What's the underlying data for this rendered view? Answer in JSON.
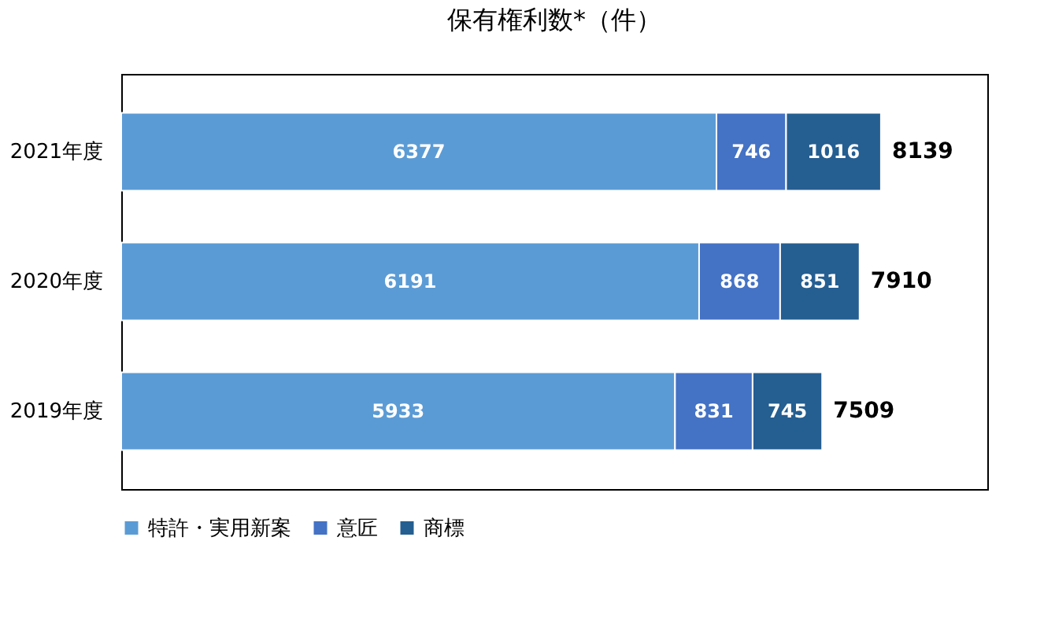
{
  "chart_data": {
    "type": "bar",
    "title": "保有権利数*（件）",
    "orientation": "horizontal",
    "stacked": true,
    "data_labels": true,
    "legend": "bottom",
    "categories": [
      "2021年度",
      "2020年度",
      "2019年度"
    ],
    "series": [
      {
        "name": "特許・実用新案",
        "color": "#5b9bd5",
        "values": [
          6377,
          6191,
          5933
        ]
      },
      {
        "name": "意匠",
        "color": "#4472c4",
        "values": [
          746,
          868,
          831
        ]
      },
      {
        "name": "商標",
        "color": "#255e91",
        "values": [
          1016,
          851,
          745
        ]
      }
    ],
    "totals": [
      "8139",
      "7910",
      "7509"
    ]
  }
}
